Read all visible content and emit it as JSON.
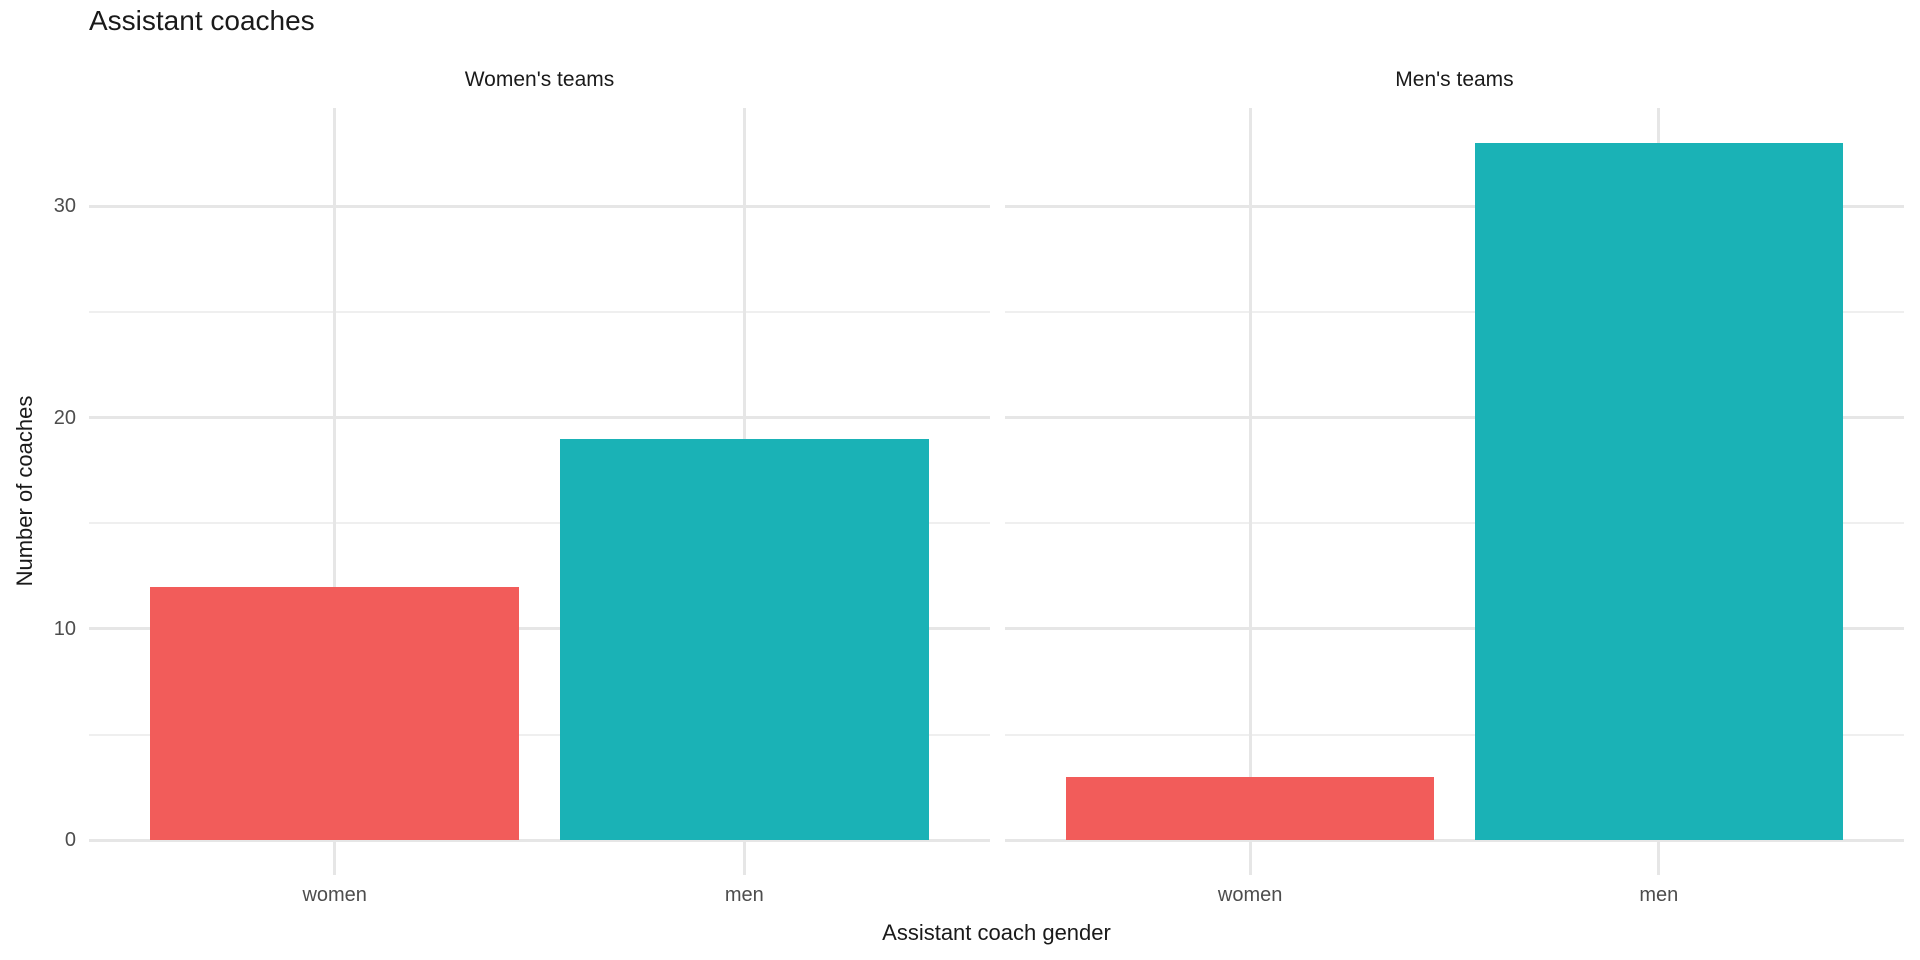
{
  "title": "Assistant coaches",
  "chart_data": {
    "type": "bar",
    "title": "Assistant coaches",
    "xlabel": "Assistant coach gender",
    "ylabel": "Number of coaches",
    "categories": [
      "women",
      "men"
    ],
    "facets": [
      {
        "label": "Women's teams",
        "series": [
          {
            "category": "women",
            "value": 12
          },
          {
            "category": "men",
            "value": 19
          }
        ]
      },
      {
        "label": "Men's teams",
        "series": [
          {
            "category": "women",
            "value": 3
          },
          {
            "category": "men",
            "value": 33
          }
        ]
      }
    ],
    "y_ticks": [
      0,
      10,
      20,
      30
    ],
    "y_minor_gridlines": [
      5,
      15,
      25
    ],
    "ylim": [
      -1.65,
      34.65
    ],
    "legend": "none",
    "grid": "horizontal major+minor, vertical major at category centers",
    "colors": {
      "bar_women": "#F25C5A",
      "bar_men": "#1AB2B6",
      "grid_major": "#E6E6E6",
      "grid_minor": "#EFEFEF",
      "tick_text": "#4D4D4D",
      "title_text": "#1A1A1A",
      "background": "#FFFFFF"
    }
  }
}
